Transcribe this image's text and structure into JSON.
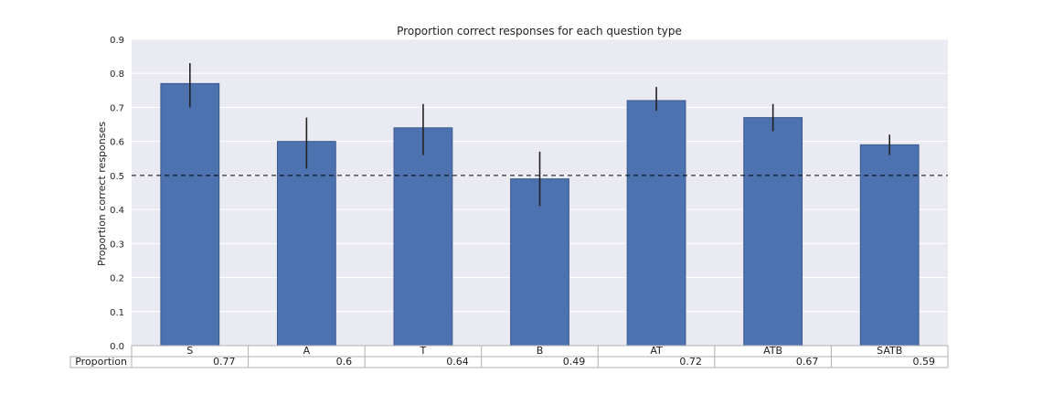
{
  "chart_data": {
    "type": "bar",
    "title": "Proportion correct responses for each question type",
    "xlabel": "",
    "ylabel": "Proportion correct responses",
    "categories": [
      "S",
      "A",
      "T",
      "B",
      "AT",
      "ATB",
      "SATB"
    ],
    "values": [
      0.77,
      0.6,
      0.64,
      0.49,
      0.72,
      0.67,
      0.59
    ],
    "error_low": [
      0.7,
      0.52,
      0.56,
      0.41,
      0.69,
      0.63,
      0.56
    ],
    "error_high": [
      0.83,
      0.67,
      0.71,
      0.57,
      0.76,
      0.71,
      0.62
    ],
    "ylim": [
      0.0,
      0.9
    ],
    "yticks": [
      "0.0",
      "0.1",
      "0.2",
      "0.3",
      "0.4",
      "0.5",
      "0.6",
      "0.7",
      "0.8",
      "0.9"
    ],
    "reference_line": 0.5,
    "grid": true,
    "table": {
      "row_label": "Proportion",
      "cells": [
        "0.77",
        "0.6",
        "0.64",
        "0.49",
        "0.72",
        "0.67",
        "0.59"
      ]
    },
    "colors": {
      "bar": "#4c72b0",
      "bar_edge": "#3c5a8c",
      "plot_bg": "#eaeaf2",
      "grid": "#ffffff",
      "errorbar": "#222222",
      "reference_line": "#000000",
      "table_border": "#b0b0b0"
    }
  }
}
